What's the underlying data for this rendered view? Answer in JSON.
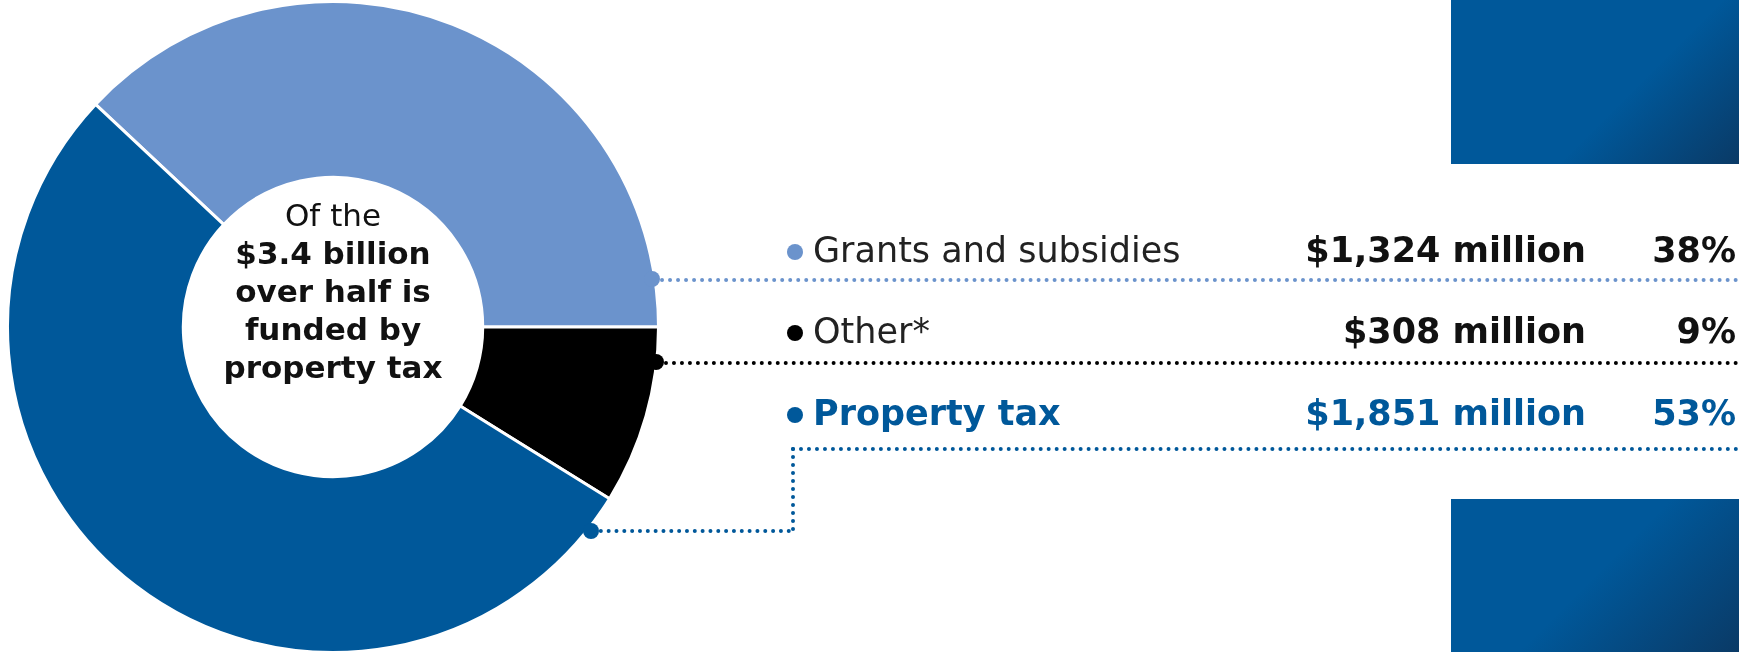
{
  "chart_data": {
    "type": "donut",
    "categories": [
      "Grants and subsidies",
      "Other*",
      "Property tax"
    ],
    "values": [
      1324,
      308,
      1851
    ],
    "colors": [
      "#6b93cc",
      "#000000",
      "#00589a"
    ],
    "value_labels": [
      "$1,324 million",
      "$308 million",
      "$1,851 million"
    ],
    "annotations": [
      "Of the",
      "$3.4 billion over half is funded by property tax",
      "38%",
      "9%",
      "53%"
    ],
    "legend": "right"
  }
}
